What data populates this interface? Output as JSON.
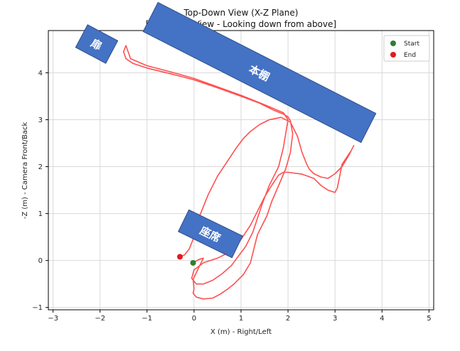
{
  "chart_data": {
    "type": "line",
    "title": "Top-Down View (X-Z Plane)",
    "subtitle": "[Bird's Eye View - Looking down from above]",
    "xlabel": "X (m) - Right/Left",
    "ylabel": "-Z (m) - Camera Front/Back",
    "xlim": [
      -3.1,
      5.1
    ],
    "ylim": [
      -1.05,
      4.9
    ],
    "xticks": [
      -3,
      -2,
      -1,
      0,
      1,
      2,
      3,
      4,
      5
    ],
    "yticks": [
      -1,
      0,
      1,
      2,
      3,
      4
    ],
    "grid": true,
    "legend": {
      "placement": "top-right",
      "entries": [
        {
          "name": "Start",
          "color": "#2e7d32"
        },
        {
          "name": "End",
          "color": "#e41a1c"
        }
      ]
    },
    "series": [
      {
        "name": "trajectory",
        "color": "#ff5050",
        "x": [
          -0.02,
          0.1,
          0.2,
          0.15,
          -0.02,
          0.0,
          -0.02,
          0.05,
          0.2,
          0.4,
          0.55,
          0.7,
          0.85,
          1.05,
          1.2,
          1.25,
          1.3,
          1.35,
          1.45,
          1.55,
          1.65,
          1.8,
          1.95,
          2.05,
          2.1,
          2.05,
          2.0,
          1.9,
          1.7,
          1.4,
          1.0,
          0.5,
          0.0,
          -0.5,
          -1.0,
          -1.3,
          -1.45,
          -1.5,
          -1.45,
          -1.35,
          -1.0,
          -0.5,
          0.0,
          0.5,
          1.0,
          1.5,
          1.9,
          2.0,
          1.95,
          1.9,
          1.8,
          1.6,
          1.45,
          1.35,
          1.25,
          1.1,
          0.95,
          0.8,
          0.6,
          0.4,
          0.2,
          0.05,
          -0.05,
          0.0,
          0.2,
          0.5,
          0.8,
          1.0,
          1.2,
          1.35,
          1.5,
          1.65,
          1.8,
          1.9,
          2.0,
          2.3,
          2.55,
          2.7,
          2.85,
          3.0,
          3.05,
          3.1,
          3.15,
          3.25,
          3.35,
          3.4,
          3.3,
          3.15,
          3.0,
          2.85,
          2.7,
          2.55,
          2.45,
          2.4,
          2.3,
          2.2,
          2.05,
          1.85,
          1.6,
          1.4,
          1.2,
          1.05,
          0.9,
          0.7,
          0.5,
          0.3,
          0.1,
          0.0,
          -0.1,
          -0.2,
          -0.3
        ],
        "y": [
          -0.05,
          0.02,
          0.05,
          -0.05,
          -0.4,
          -0.6,
          -0.7,
          -0.78,
          -0.82,
          -0.8,
          -0.72,
          -0.62,
          -0.5,
          -0.3,
          -0.05,
          0.15,
          0.35,
          0.55,
          0.75,
          0.95,
          1.25,
          1.6,
          1.95,
          2.3,
          2.7,
          2.98,
          3.06,
          3.12,
          3.2,
          3.35,
          3.5,
          3.68,
          3.85,
          3.98,
          4.1,
          4.2,
          4.3,
          4.45,
          4.58,
          4.3,
          4.15,
          4.02,
          3.88,
          3.7,
          3.52,
          3.32,
          3.15,
          3.0,
          2.7,
          2.4,
          2.0,
          1.6,
          1.2,
          0.9,
          0.6,
          0.3,
          0.1,
          -0.1,
          -0.28,
          -0.42,
          -0.5,
          -0.5,
          -0.38,
          -0.2,
          -0.05,
          0.05,
          0.2,
          0.45,
          0.75,
          1.05,
          1.35,
          1.6,
          1.82,
          1.88,
          1.88,
          1.84,
          1.75,
          1.6,
          1.5,
          1.45,
          1.55,
          1.8,
          2.05,
          2.2,
          2.35,
          2.45,
          2.25,
          2.0,
          1.85,
          1.75,
          1.78,
          1.85,
          1.95,
          2.05,
          2.3,
          2.65,
          2.95,
          3.05,
          3.0,
          2.9,
          2.75,
          2.6,
          2.4,
          2.1,
          1.8,
          1.4,
          0.9,
          0.5,
          0.25,
          0.12,
          0.08
        ]
      }
    ],
    "markers": {
      "start": {
        "x": -0.02,
        "y": -0.05,
        "color": "#2e7d32"
      },
      "end": {
        "x": -0.3,
        "y": 0.08,
        "color": "#e41a1c"
      }
    }
  },
  "overlays": {
    "door_label": "扉",
    "bookshelf_label": "本棚",
    "seat_label": "座席",
    "box_color": "#4472c4",
    "box_border": "#2f4f8a"
  }
}
